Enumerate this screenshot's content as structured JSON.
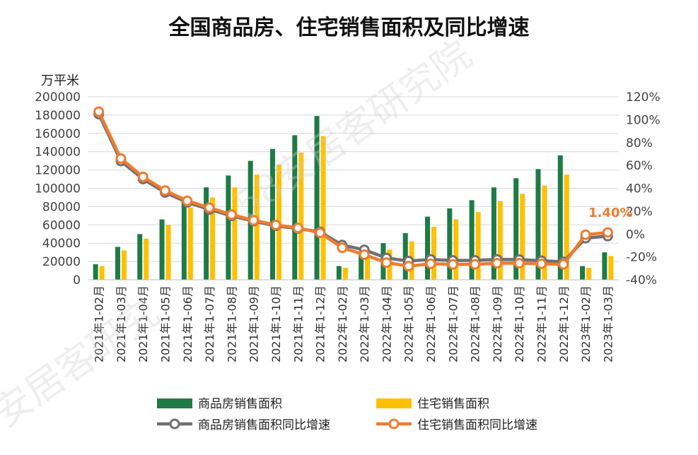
{
  "chart_data": {
    "type": "bar+line",
    "title": "全国商品房、住宅销售面积及同比增速",
    "y_left_label": "万平米",
    "y_left_lim": [
      0,
      200000
    ],
    "y_left_ticks": [
      "0",
      "20000",
      "40000",
      "60000",
      "80000",
      "100000",
      "120000",
      "140000",
      "160000",
      "180000",
      "200000"
    ],
    "y_right_lim": [
      -40,
      120
    ],
    "y_right_ticks": [
      "-40%",
      "-20%",
      "0%",
      "20%",
      "40%",
      "60%",
      "80%",
      "100%",
      "120%"
    ],
    "categories": [
      "2021年1-02月",
      "2021年1-03月",
      "2021年1-04月",
      "2021年1-05月",
      "2021年1-06月",
      "2021年1-07月",
      "2021年1-08月",
      "2021年1-09月",
      "2021年1-10月",
      "2021年1-11月",
      "2021年1-12月",
      "2022年1-02月",
      "2022年1-03月",
      "2022年1-04月",
      "2022年1-05月",
      "2022年1-06月",
      "2022年1-07月",
      "2022年1-08月",
      "2022年1-09月",
      "2022年1-10月",
      "2022年1-11月",
      "2022年1-12月",
      "2023年1-02月",
      "2023年1-03月"
    ],
    "bar_series": [
      {
        "name": "商品房销售面积",
        "color": "#1e7b45",
        "axis": "left",
        "values": [
          17000,
          36000,
          50000,
          66000,
          88000,
          101000,
          114000,
          130000,
          143000,
          158000,
          179000,
          15000,
          31000,
          40000,
          51000,
          69000,
          78000,
          87000,
          101000,
          111000,
          121000,
          136000,
          15000,
          30000
        ]
      },
      {
        "name": "住宅销售面积",
        "color": "#ffc000",
        "axis": "left",
        "values": [
          15000,
          32000,
          45000,
          60000,
          79000,
          90000,
          101000,
          115000,
          126000,
          139000,
          157000,
          13000,
          26000,
          33000,
          42000,
          58000,
          66000,
          74000,
          86000,
          94000,
          103000,
          115000,
          13000,
          26000
        ]
      }
    ],
    "line_series": [
      {
        "name": "商品房销售面积同比增速",
        "color": "#707070",
        "axis": "right",
        "values": [
          104.9,
          63.8,
          48.1,
          36.3,
          27.7,
          21.5,
          15.9,
          11.3,
          7.2,
          4.8,
          1.9,
          -9.6,
          -13.8,
          -20.9,
          -23.6,
          -22.2,
          -23.1,
          -23.0,
          -22.2,
          -22.3,
          -23.3,
          -24.3,
          -3.6,
          -1.8
        ]
      },
      {
        "name": "住宅销售面积同比增速",
        "color": "#ed7d31",
        "axis": "right",
        "values": [
          107.0,
          66.0,
          50.0,
          38.0,
          29.0,
          23.0,
          17.0,
          12.0,
          8.0,
          5.3,
          1.1,
          -12.0,
          -18.0,
          -25.0,
          -28.0,
          -26.0,
          -26.5,
          -26.5,
          -25.5,
          -25.5,
          -26.0,
          -26.5,
          -0.6,
          1.4
        ]
      }
    ],
    "annotation": "1.40%",
    "legend": [
      "商品房销售面积",
      "住宅销售面积",
      "商品房销售面积同比增速",
      "住宅销售面积同比增速"
    ],
    "legend_position": "bottom",
    "grid": true
  }
}
